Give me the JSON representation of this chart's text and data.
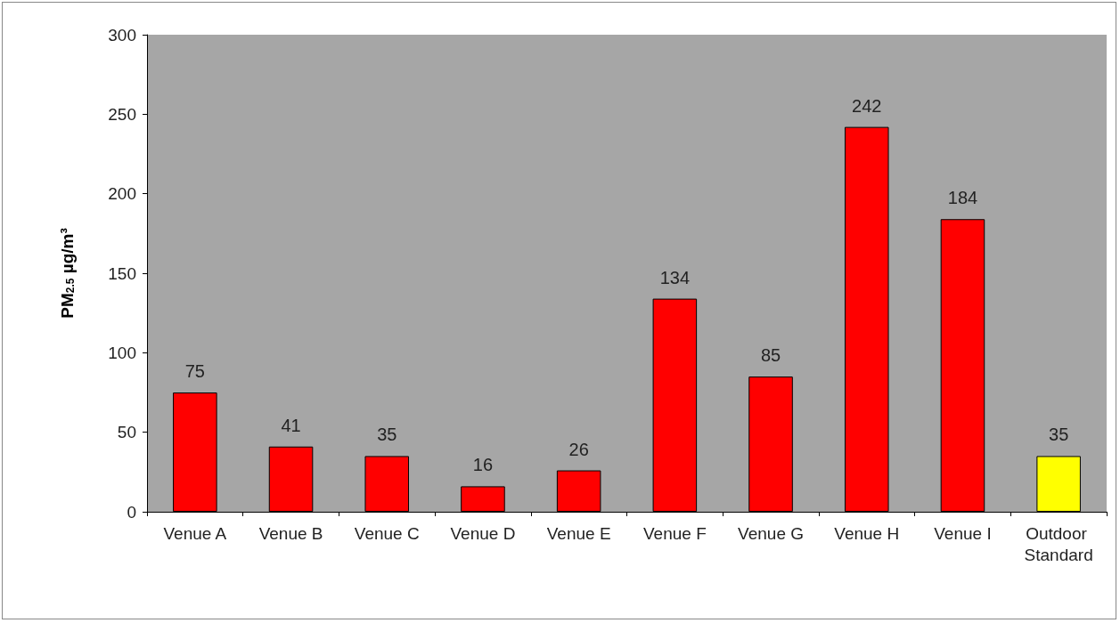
{
  "chart_data": {
    "type": "bar",
    "ylabel": "PM$_{2.5}$ µg/m³",
    "categories": [
      "Venue A",
      "Venue B",
      "Venue C",
      "Venue D",
      "Venue E",
      "Venue F",
      "Venue G",
      "Venue H",
      "Venue I",
      "Outdoor Standard"
    ],
    "values": [
      75,
      41,
      35,
      16,
      26,
      134,
      85,
      242,
      184,
      35
    ],
    "colors": [
      "#ff0000",
      "#ff0000",
      "#ff0000",
      "#ff0000",
      "#ff0000",
      "#ff0000",
      "#ff0000",
      "#ff0000",
      "#ff0000",
      "#ffff00"
    ],
    "ylim": [
      0,
      300
    ],
    "yticks": [
      0,
      50,
      100,
      150,
      200,
      250,
      300
    ],
    "data_labels": true,
    "grid": false
  }
}
